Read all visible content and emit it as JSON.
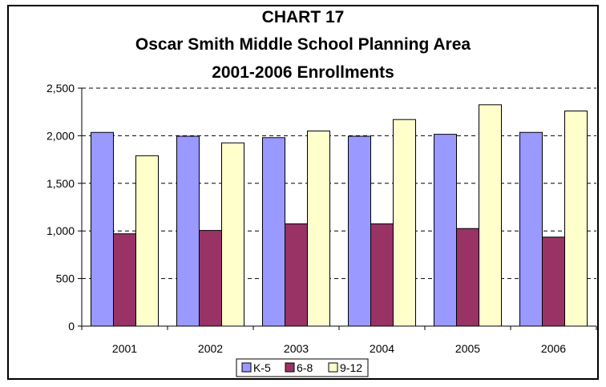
{
  "chart_data": {
    "type": "bar",
    "title_lines": [
      "CHART 17",
      "Oscar Smith Middle School Planning Area",
      "2001-2006 Enrollments"
    ],
    "xlabel": "",
    "ylabel": "",
    "categories": [
      "2001",
      "2002",
      "2003",
      "2004",
      "2005",
      "2006"
    ],
    "series": [
      {
        "name": "K-5",
        "color": "#9999ff",
        "values": [
          2035,
          1995,
          1980,
          1995,
          2015,
          2035
        ]
      },
      {
        "name": "6-8",
        "color": "#993366",
        "values": [
          970,
          1005,
          1075,
          1075,
          1025,
          935
        ]
      },
      {
        "name": "9-12",
        "color": "#ffffcc",
        "values": [
          1790,
          1925,
          2050,
          2170,
          2325,
          2260
        ]
      }
    ],
    "ylim": [
      0,
      2500
    ],
    "yticks": [
      0,
      500,
      1000,
      1500,
      2000,
      2500
    ],
    "ytick_labels": [
      "0",
      "500",
      "1,000",
      "1,500",
      "2,000",
      "2,500"
    ],
    "grid": true,
    "legend_position": "bottom"
  }
}
